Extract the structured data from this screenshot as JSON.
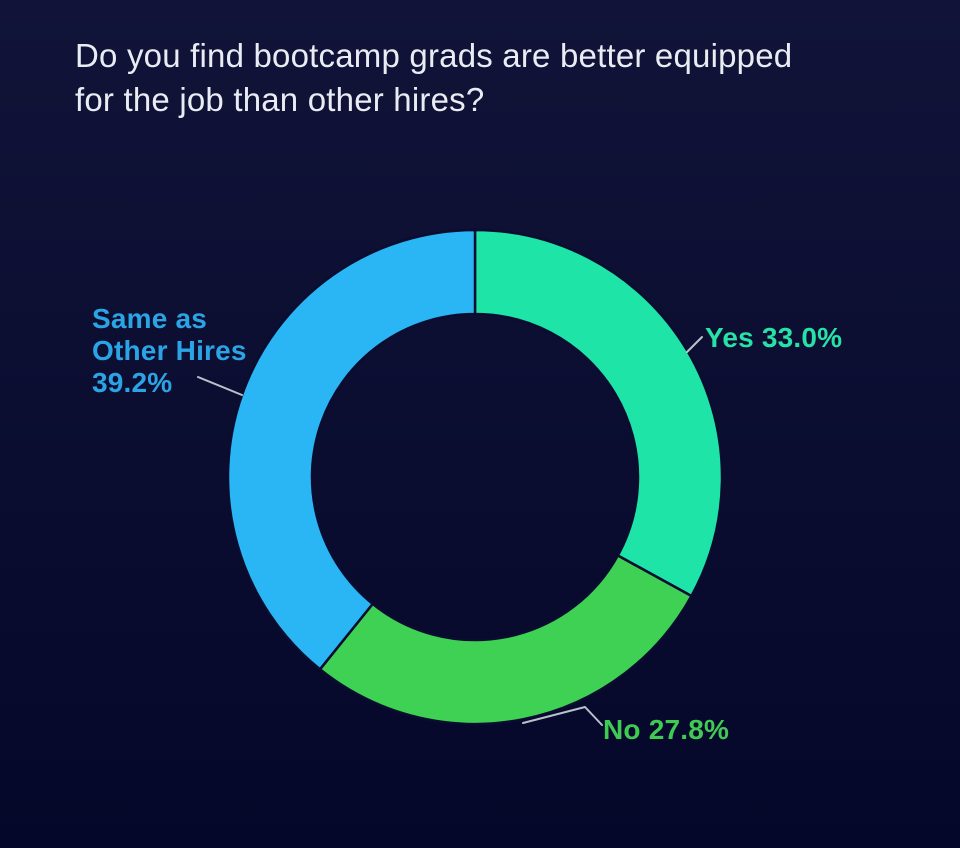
{
  "title": {
    "full": "Do you find bootcamp grads are better equipped for the job than other hires?",
    "lines": [
      "Do you find bootcamp grads are better equipped",
      "for the job than other hires?"
    ]
  },
  "chart_data": {
    "type": "pie",
    "subtype": "donut",
    "title": "Do you find bootcamp grads are better equipped for the job than other hires?",
    "categories": [
      "Yes",
      "No",
      "Same as Other Hires"
    ],
    "values": [
      33.0,
      27.8,
      39.2
    ],
    "unit": "%",
    "direction": "clockwise",
    "start_angle_deg": 0,
    "inner_radius_ratio": 0.66,
    "colors": [
      "#1ee4a7",
      "#3ed154",
      "#2ab6f4"
    ],
    "label_colors": [
      "#27e2a6",
      "#3fcb52",
      "#2ba4e6"
    ],
    "background": "#0a0d30",
    "legend": "none",
    "labels": [
      {
        "text": "Yes 33.0%"
      },
      {
        "text": "No 27.8%"
      },
      {
        "text": "Same as Other Hires 39.2%",
        "lines": [
          "Same as",
          "Other Hires",
          "39.2%"
        ]
      }
    ]
  }
}
